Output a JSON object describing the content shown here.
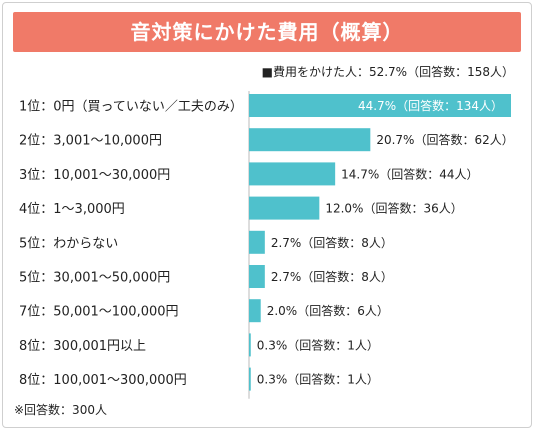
{
  "header": {
    "title": "音対策にかけた費用（概算）"
  },
  "summary": "■費用をかけた人：52.7%（回答数：158人）",
  "footnote": "※回答数：300人",
  "colors": {
    "title_bg": "#f07a68",
    "bar": "#4fc1cc",
    "axis": "#bbbbbb"
  },
  "chart_data": {
    "type": "bar",
    "orientation": "horizontal",
    "title": "音対策にかけた費用（概算）",
    "categories": [
      "1位：0円（買っていない／工夫のみ）",
      "2位：3,001〜10,000円",
      "3位：10,001〜30,000円",
      "4位：1〜3,000円",
      "5位：わからない",
      "5位：30,001〜50,000円",
      "7位：50,001〜100,000円",
      "8位：300,001円以上",
      "8位：100,001〜300,000円"
    ],
    "values": [
      44.7,
      20.7,
      14.7,
      12.0,
      2.7,
      2.7,
      2.0,
      0.3,
      0.3
    ],
    "data_labels": [
      "44.7%（回答数：134人）",
      "20.7%（回答数：62人）",
      "14.7%（回答数：44人）",
      "12.0%（回答数：36人）",
      "2.7%（回答数：8人）",
      "2.7%（回答数：8人）",
      "2.0%（回答数：6人）",
      "0.3%（回答数：1人）",
      "0.3%（回答数：1人）"
    ],
    "xlim": [
      0,
      44.7
    ],
    "grid": false,
    "legend": "none"
  }
}
